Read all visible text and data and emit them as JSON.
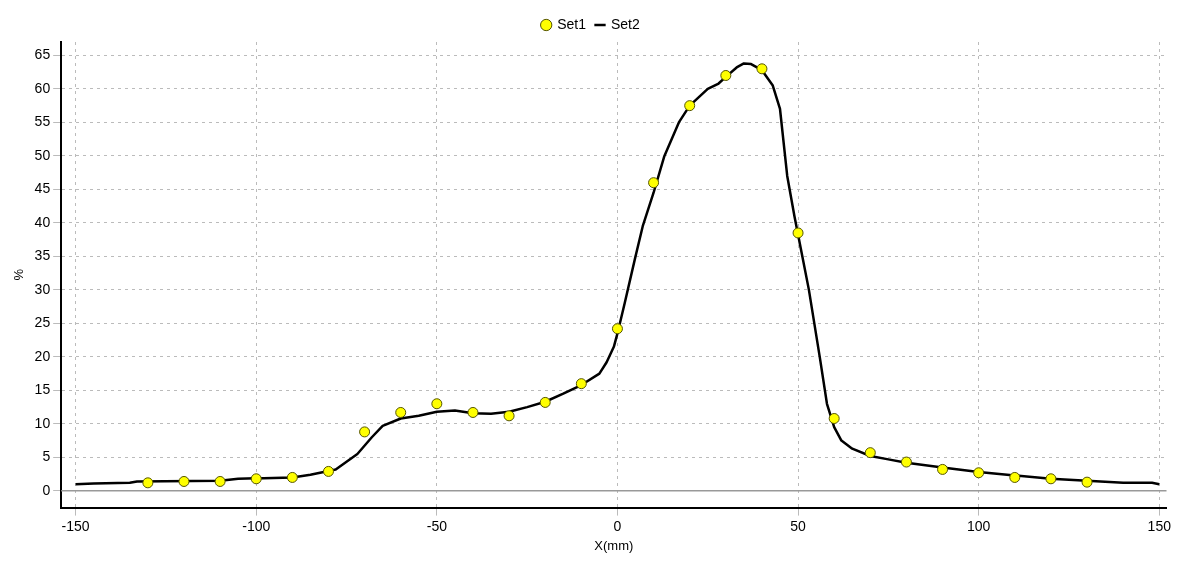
{
  "chart_data": {
    "type": "scatter",
    "xlabel": "X(mm)",
    "ylabel": "%",
    "xlim": [
      -154,
      152
    ],
    "ylim": [
      -2.5,
      67
    ],
    "xticks": [
      -150,
      -100,
      -50,
      0,
      50,
      100,
      150
    ],
    "yticks": [
      0,
      5,
      10,
      15,
      20,
      25,
      30,
      35,
      40,
      45,
      50,
      55,
      60,
      65
    ],
    "grid": true,
    "legend": "top",
    "ref_lines": [
      {
        "axis": "y",
        "value": 0,
        "color": "#999999"
      }
    ],
    "series": [
      {
        "name": "Set1",
        "marker": "circle",
        "color": "#ffff00",
        "x": [
          -130,
          -120,
          -110,
          -100,
          -90,
          -80,
          -70,
          -60,
          -50,
          -40,
          -30,
          -20,
          -10,
          0,
          10,
          20,
          30,
          40,
          50,
          60,
          70,
          80,
          90,
          100,
          110,
          120,
          130
        ],
        "values": [
          1.2,
          1.4,
          1.4,
          1.8,
          2.0,
          2.9,
          8.8,
          11.7,
          13.0,
          11.7,
          11.2,
          13.2,
          16.0,
          24.2,
          46,
          57.5,
          62,
          63,
          38.5,
          10.8,
          5.7,
          4.3,
          3.2,
          2.7,
          2.0,
          1.8,
          1.3
        ]
      },
      {
        "name": "Set2",
        "type": "line",
        "marker": "none",
        "line_style": "solid",
        "color": "#000000",
        "x": [
          -150,
          -145,
          -135,
          -133,
          -110,
          -105,
          -90,
          -85,
          -78,
          -72,
          -68,
          -65,
          -60,
          -55,
          -50,
          -45,
          -40,
          -35,
          -30,
          -25,
          -20,
          -15,
          -10,
          -5,
          -3,
          -1,
          0,
          2,
          5,
          7,
          10,
          13,
          17,
          20,
          25,
          28,
          30,
          33,
          35,
          37,
          40,
          43,
          45,
          47,
          49,
          51,
          53,
          56,
          58,
          60,
          62,
          65,
          70,
          75,
          80,
          90,
          100,
          110,
          120,
          130,
          140,
          148,
          150
        ],
        "values": [
          1.0,
          1.1,
          1.2,
          1.4,
          1.5,
          1.8,
          2.0,
          2.4,
          3.2,
          5.5,
          8.0,
          9.7,
          10.8,
          11.2,
          11.8,
          12.0,
          11.6,
          11.5,
          11.8,
          12.5,
          13.3,
          14.5,
          15.8,
          17.5,
          19.2,
          21.5,
          23.5,
          28,
          35,
          39.5,
          44.5,
          50,
          55,
          57.5,
          60,
          60.8,
          61.8,
          63.2,
          63.8,
          63.7,
          62.8,
          60.5,
          57,
          47,
          41,
          35.5,
          30,
          20,
          13,
          9.5,
          7.5,
          6.3,
          5.2,
          4.7,
          4.2,
          3.5,
          2.8,
          2.3,
          1.8,
          1.5,
          1.2,
          1.2,
          1.0
        ]
      }
    ]
  }
}
